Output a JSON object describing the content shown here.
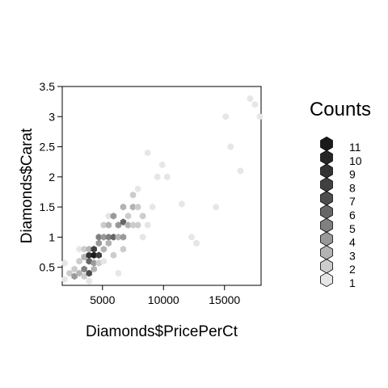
{
  "chart_data": {
    "type": "heatmap",
    "subtype": "hexbin",
    "xlabel": "Diamonds$PricePerCt",
    "ylabel": "Diamonds$Carat",
    "xlim": [
      1700,
      18000
    ],
    "ylim": [
      0.2,
      3.5
    ],
    "xticks": [
      5000,
      10000,
      15000
    ],
    "xtick_labels": [
      "5000",
      "10000",
      "15000"
    ],
    "yticks": [
      0.5,
      1,
      1.5,
      2,
      2.5,
      3,
      3.5
    ],
    "ytick_labels": [
      "0.5",
      "1",
      "1.5",
      "2",
      "2.5",
      "3",
      "3.5"
    ],
    "legend": {
      "title": "Counts",
      "position": "right",
      "levels": [
        11,
        10,
        9,
        8,
        7,
        6,
        5,
        4,
        3,
        2,
        1
      ],
      "colors": [
        "#1a1a1a",
        "#262626",
        "#333333",
        "#404040",
        "#4d4d4d",
        "#666666",
        "#808080",
        "#999999",
        "#b3b3b3",
        "#cccccc",
        "#e6e6e6"
      ]
    },
    "cells": [
      {
        "x": 1900,
        "y": 0.3,
        "count": 1
      },
      {
        "x": 1900,
        "y": 0.57,
        "count": 1
      },
      {
        "x": 2300,
        "y": 0.4,
        "count": 2
      },
      {
        "x": 2700,
        "y": 0.35,
        "count": 4
      },
      {
        "x": 2700,
        "y": 0.47,
        "count": 2
      },
      {
        "x": 3100,
        "y": 0.4,
        "count": 3
      },
      {
        "x": 3100,
        "y": 0.6,
        "count": 2
      },
      {
        "x": 3100,
        "y": 0.8,
        "count": 1
      },
      {
        "x": 3500,
        "y": 0.47,
        "count": 5
      },
      {
        "x": 3500,
        "y": 0.35,
        "count": 2
      },
      {
        "x": 3500,
        "y": 0.67,
        "count": 3
      },
      {
        "x": 3500,
        "y": 0.8,
        "count": 2
      },
      {
        "x": 3900,
        "y": 0.4,
        "count": 7
      },
      {
        "x": 3900,
        "y": 0.6,
        "count": 6
      },
      {
        "x": 3900,
        "y": 0.7,
        "count": 9
      },
      {
        "x": 3900,
        "y": 0.8,
        "count": 3
      },
      {
        "x": 3900,
        "y": 0.27,
        "count": 1
      },
      {
        "x": 4300,
        "y": 0.7,
        "count": 11
      },
      {
        "x": 4300,
        "y": 0.8,
        "count": 8
      },
      {
        "x": 4300,
        "y": 0.57,
        "count": 4
      },
      {
        "x": 4300,
        "y": 0.47,
        "count": 3
      },
      {
        "x": 4700,
        "y": 0.7,
        "count": 8
      },
      {
        "x": 4700,
        "y": 0.9,
        "count": 4
      },
      {
        "x": 4700,
        "y": 1.0,
        "count": 5
      },
      {
        "x": 4700,
        "y": 0.57,
        "count": 2
      },
      {
        "x": 5100,
        "y": 0.8,
        "count": 3
      },
      {
        "x": 5100,
        "y": 1.0,
        "count": 4
      },
      {
        "x": 5100,
        "y": 1.2,
        "count": 2
      },
      {
        "x": 5100,
        "y": 0.6,
        "count": 1
      },
      {
        "x": 5500,
        "y": 1.0,
        "count": 5
      },
      {
        "x": 5500,
        "y": 1.2,
        "count": 3
      },
      {
        "x": 5500,
        "y": 0.9,
        "count": 3
      },
      {
        "x": 5500,
        "y": 1.35,
        "count": 1
      },
      {
        "x": 5900,
        "y": 1.0,
        "count": 6
      },
      {
        "x": 5900,
        "y": 1.35,
        "count": 4
      },
      {
        "x": 5900,
        "y": 0.7,
        "count": 2
      },
      {
        "x": 6300,
        "y": 1.2,
        "count": 4
      },
      {
        "x": 6300,
        "y": 1.0,
        "count": 3
      },
      {
        "x": 6300,
        "y": 0.4,
        "count": 1
      },
      {
        "x": 6700,
        "y": 1.25,
        "count": 6
      },
      {
        "x": 6700,
        "y": 1.5,
        "count": 3
      },
      {
        "x": 6700,
        "y": 1.0,
        "count": 4
      },
      {
        "x": 6700,
        "y": 0.8,
        "count": 2
      },
      {
        "x": 7100,
        "y": 1.2,
        "count": 3
      },
      {
        "x": 7100,
        "y": 1.35,
        "count": 2
      },
      {
        "x": 7500,
        "y": 1.5,
        "count": 3
      },
      {
        "x": 7500,
        "y": 1.2,
        "count": 2
      },
      {
        "x": 7500,
        "y": 1.7,
        "count": 2
      },
      {
        "x": 7900,
        "y": 1.2,
        "count": 2
      },
      {
        "x": 7900,
        "y": 1.5,
        "count": 2
      },
      {
        "x": 7900,
        "y": 1.8,
        "count": 1
      },
      {
        "x": 8300,
        "y": 1.35,
        "count": 2
      },
      {
        "x": 8300,
        "y": 1.0,
        "count": 1
      },
      {
        "x": 8700,
        "y": 2.4,
        "count": 1
      },
      {
        "x": 8700,
        "y": 1.2,
        "count": 1
      },
      {
        "x": 9100,
        "y": 1.5,
        "count": 1
      },
      {
        "x": 9500,
        "y": 2.0,
        "count": 1
      },
      {
        "x": 9900,
        "y": 2.2,
        "count": 1
      },
      {
        "x": 10300,
        "y": 2.0,
        "count": 1
      },
      {
        "x": 11500,
        "y": 1.55,
        "count": 1
      },
      {
        "x": 12300,
        "y": 1.0,
        "count": 1
      },
      {
        "x": 12700,
        "y": 0.9,
        "count": 1
      },
      {
        "x": 14300,
        "y": 1.5,
        "count": 1
      },
      {
        "x": 15100,
        "y": 3.0,
        "count": 1
      },
      {
        "x": 15500,
        "y": 2.5,
        "count": 1
      },
      {
        "x": 16300,
        "y": 2.1,
        "count": 1
      },
      {
        "x": 17100,
        "y": 3.3,
        "count": 1
      },
      {
        "x": 17500,
        "y": 3.2,
        "count": 1
      },
      {
        "x": 17900,
        "y": 3.0,
        "count": 1
      }
    ]
  }
}
